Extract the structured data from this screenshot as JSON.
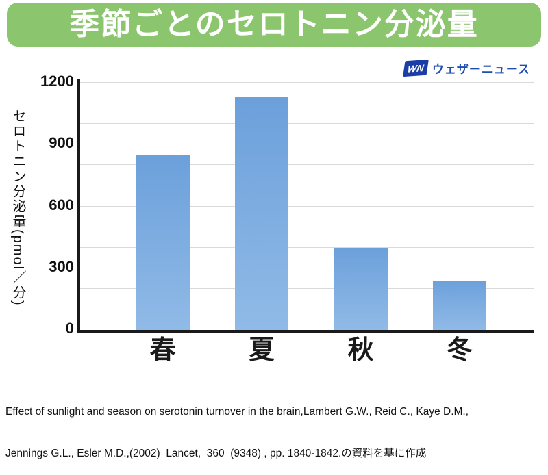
{
  "header": {
    "title": "季節ごとのセロトニン分泌量"
  },
  "logo": {
    "mark": "WN",
    "name": "ウェザーニュース"
  },
  "chart_data": {
    "type": "bar",
    "title": "季節ごとのセロトニン分泌量",
    "categories": [
      "春",
      "夏",
      "秋",
      "冬"
    ],
    "values": [
      850,
      1130,
      400,
      240
    ],
    "xlabel": "",
    "ylabel": "セロトニン分泌量(pmol／分)",
    "ylim": [
      0,
      1200
    ],
    "yticks": [
      0,
      300,
      600,
      900,
      1200
    ],
    "gridline_interval": 100,
    "grid": true,
    "legend_position": "none",
    "bar_color_top": "#6ca0db",
    "bar_color_bottom": "#90bae7",
    "axis_color": "#1a1a1a",
    "grid_color": "#d9d9d9"
  },
  "footer": {
    "line1": "Effect of sunlight and season on serotonin turnover in the brain,Lambert G.W., Reid C., Kaye D.M.,",
    "line2": "Jennings G.L., Esler M.D.,(2002)  Lancet,  360  (9348) , pp. 1840-1842.の資料を基に作成"
  },
  "colors": {
    "banner_green": "#8bc56e",
    "logo_box_blue": "#1b3da6",
    "logo_text_blue": "#1d4eb0"
  }
}
